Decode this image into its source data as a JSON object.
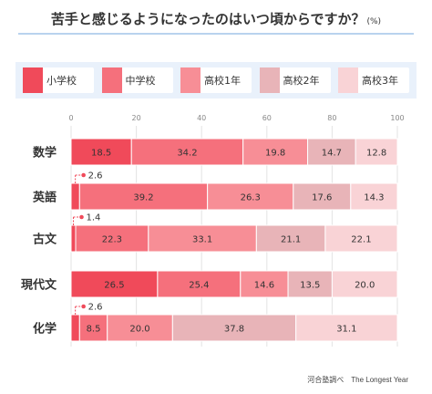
{
  "header": {
    "title": "苦手と感じるようになったのはいつ頃からですか？",
    "unit": "(%)"
  },
  "legend": [
    {
      "label": "小学校",
      "color": "#f04a5a"
    },
    {
      "label": "中学校",
      "color": "#f5707c"
    },
    {
      "label": "高校1年",
      "color": "#f78e96"
    },
    {
      "label": "高校2年",
      "color": "#e8b4b8"
    },
    {
      "label": "高校3年",
      "color": "#f9d3d6"
    }
  ],
  "footer": {
    "source": "河合塾調べ　The Longest Year"
  },
  "chart_data": {
    "type": "bar",
    "orientation": "horizontal",
    "stacked": true,
    "categories": [
      "数学",
      "英語",
      "古文",
      "現代文",
      "化学"
    ],
    "series": [
      {
        "name": "小学校",
        "values": [
          18.5,
          2.6,
          1.4,
          26.5,
          2.6
        ]
      },
      {
        "name": "中学校",
        "values": [
          34.2,
          39.2,
          22.3,
          25.4,
          8.5
        ]
      },
      {
        "name": "高校1年",
        "values": [
          19.8,
          26.3,
          33.1,
          14.6,
          20.0
        ]
      },
      {
        "name": "高校2年",
        "values": [
          14.7,
          17.6,
          21.1,
          13.5,
          37.8
        ]
      },
      {
        "name": "高校3年",
        "values": [
          12.8,
          14.3,
          22.1,
          20.0,
          31.1
        ]
      }
    ],
    "xticks": [
      0,
      20,
      40,
      60,
      80,
      100
    ],
    "xlim": [
      0,
      100
    ],
    "grid": true
  }
}
